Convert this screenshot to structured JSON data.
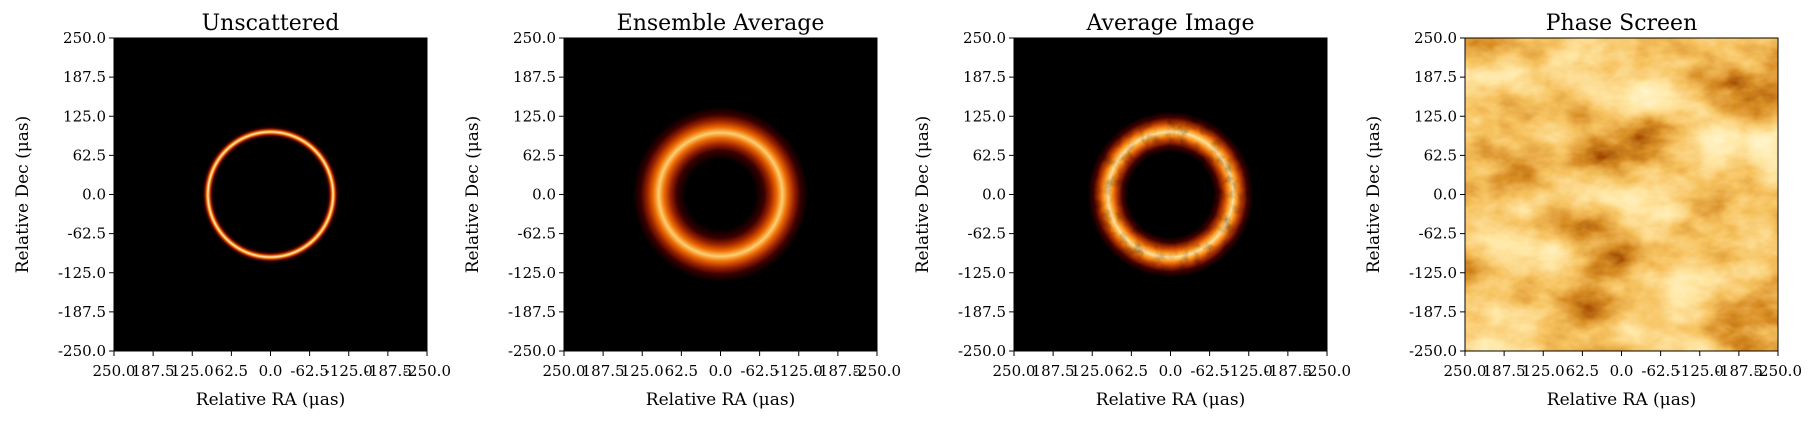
{
  "chart_data": [
    {
      "type": "heatmap",
      "title": "Unscattered",
      "xlabel": "Relative RA (μas)",
      "ylabel": "Relative Dec (μas)",
      "xticks": [
        "250.0",
        "187.5",
        "125.0",
        "62.5",
        "0.0",
        "-62.5",
        "-125.0",
        "-187.5",
        "-250.0"
      ],
      "yticks": [
        "250.0",
        "187.5",
        "125.0",
        "62.5",
        "0.0",
        "-62.5",
        "-125.0",
        "-187.5",
        "-250.0"
      ],
      "xlim": [
        250,
        -250
      ],
      "ylim": [
        -250,
        250
      ],
      "colormap": "afmhot",
      "image": "thin ring",
      "ring_radius": 100,
      "ring_width": 9
    },
    {
      "type": "heatmap",
      "title": "Ensemble Average",
      "xlabel": "Relative RA (μas)",
      "ylabel": "Relative Dec (μas)",
      "xticks": [
        "250.0",
        "187.5",
        "125.0",
        "62.5",
        "0.0",
        "-62.5",
        "-125.0",
        "-187.5",
        "-250.0"
      ],
      "yticks": [
        "250.0",
        "187.5",
        "125.0",
        "62.5",
        "0.0",
        "-62.5",
        "-125.0",
        "-187.5",
        "-250.0"
      ],
      "xlim": [
        250,
        -250
      ],
      "ylim": [
        -250,
        250
      ],
      "colormap": "afmhot",
      "image": "blurred ring",
      "ring_radius": 100,
      "ring_width": 22
    },
    {
      "type": "heatmap",
      "title": "Average Image",
      "xlabel": "Relative RA (μas)",
      "ylabel": "Relative Dec (μas)",
      "xticks": [
        "250.0",
        "187.5",
        "125.0",
        "62.5",
        "0.0",
        "-62.5",
        "-125.0",
        "-187.5",
        "-250.0"
      ],
      "yticks": [
        "250.0",
        "187.5",
        "125.0",
        "62.5",
        "0.0",
        "-62.5",
        "-125.0",
        "-187.5",
        "-250.0"
      ],
      "xlim": [
        250,
        -250
      ],
      "ylim": [
        -250,
        250
      ],
      "colormap": "afmhot",
      "image": "scattered ring with substructure",
      "ring_radius": 100,
      "ring_width": 20
    },
    {
      "type": "heatmap",
      "title": "Phase Screen",
      "xlabel": "Relative RA (μas)",
      "ylabel": "Relative Dec (μas)",
      "xticks": [
        "250.0",
        "187.5",
        "125.0",
        "62.5",
        "0.0",
        "-62.5",
        "-125.0",
        "-187.5",
        "-250.0"
      ],
      "yticks": [
        "250.0",
        "187.5",
        "125.0",
        "62.5",
        "0.0",
        "-62.5",
        "-125.0",
        "-187.5",
        "-250.0"
      ],
      "xlim": [
        250,
        -250
      ],
      "ylim": [
        -250,
        250
      ],
      "colormap": "afmhot",
      "image": "turbulent phase screen"
    }
  ]
}
